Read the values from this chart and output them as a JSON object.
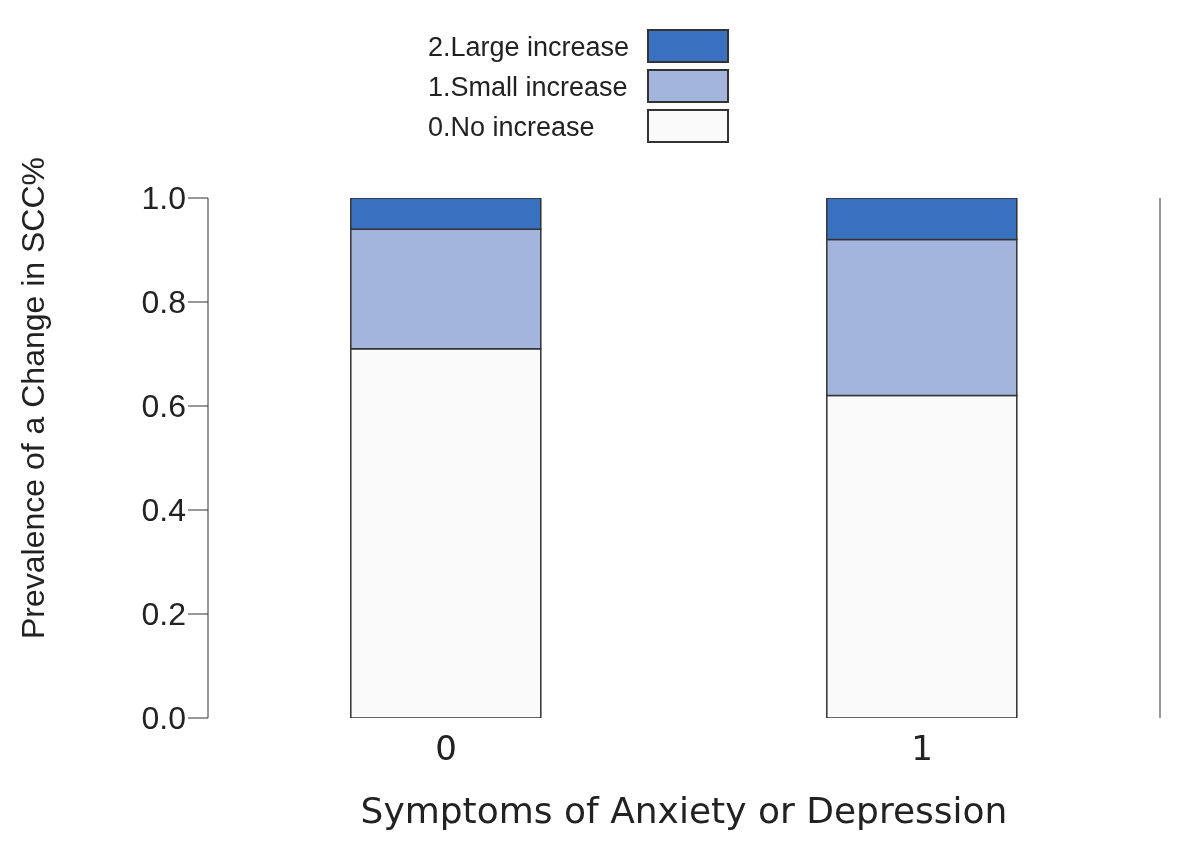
{
  "chart_data": {
    "type": "bar",
    "stacked": true,
    "xlabel": "Symptoms of Anxiety or Depression",
    "ylabel": "Prevalence of a Change in SCC%",
    "categories": [
      "0",
      "1"
    ],
    "series": [
      {
        "name": "0.No increase",
        "color": "#fafafa",
        "values": [
          0.71,
          0.62
        ]
      },
      {
        "name": "1.Small increase",
        "color": "#a3b5dc",
        "values": [
          0.23,
          0.3
        ]
      },
      {
        "name": "2.Large increase",
        "color": "#3a70c0",
        "values": [
          0.06,
          0.08
        ]
      }
    ],
    "ylim": [
      0,
      1
    ],
    "yticks": [
      {
        "value": 0,
        "label": "0.0"
      },
      {
        "value": 0.2,
        "label": "0.2"
      },
      {
        "value": 0.4,
        "label": "0.4"
      },
      {
        "value": 0.6,
        "label": "0.6"
      },
      {
        "value": 0.8,
        "label": "0.8"
      },
      {
        "value": 1,
        "label": "1.0"
      }
    ],
    "grid": false,
    "legend": "top"
  }
}
